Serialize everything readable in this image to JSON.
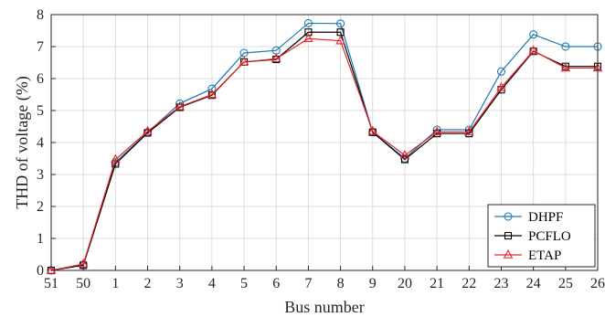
{
  "chart_data": {
    "type": "line",
    "title": "",
    "xlabel": "Bus number",
    "ylabel": "THD of voltage (%)",
    "categories": [
      "51",
      "50",
      "1",
      "2",
      "3",
      "4",
      "5",
      "6",
      "7",
      "8",
      "9",
      "20",
      "21",
      "22",
      "23",
      "24",
      "25",
      "26"
    ],
    "ylim": [
      0,
      8
    ],
    "yticks": [
      "0",
      "1",
      "2",
      "3",
      "4",
      "5",
      "6",
      "7",
      "8"
    ],
    "grid": true,
    "legend_position": "bottom-right",
    "series": [
      {
        "name": "DHPF",
        "color": "#1f77b4",
        "marker": "circle",
        "values": [
          0.0,
          0.18,
          3.38,
          4.32,
          5.22,
          5.68,
          6.8,
          6.88,
          7.73,
          7.72,
          4.33,
          3.5,
          4.4,
          4.4,
          6.22,
          7.38,
          7.0,
          7.0
        ]
      },
      {
        "name": "PCFLO",
        "color": "#000000",
        "marker": "square",
        "values": [
          0.0,
          0.16,
          3.33,
          4.3,
          5.1,
          5.48,
          6.52,
          6.6,
          7.45,
          7.45,
          4.32,
          3.47,
          4.28,
          4.28,
          5.65,
          6.85,
          6.38,
          6.38
        ]
      },
      {
        "name": "ETAP",
        "color": "#e8262a",
        "marker": "triangle",
        "values": [
          0.0,
          0.2,
          3.47,
          4.35,
          5.12,
          5.5,
          6.52,
          6.62,
          7.25,
          7.18,
          4.35,
          3.6,
          4.33,
          4.33,
          5.72,
          6.87,
          6.33,
          6.33
        ]
      }
    ]
  }
}
